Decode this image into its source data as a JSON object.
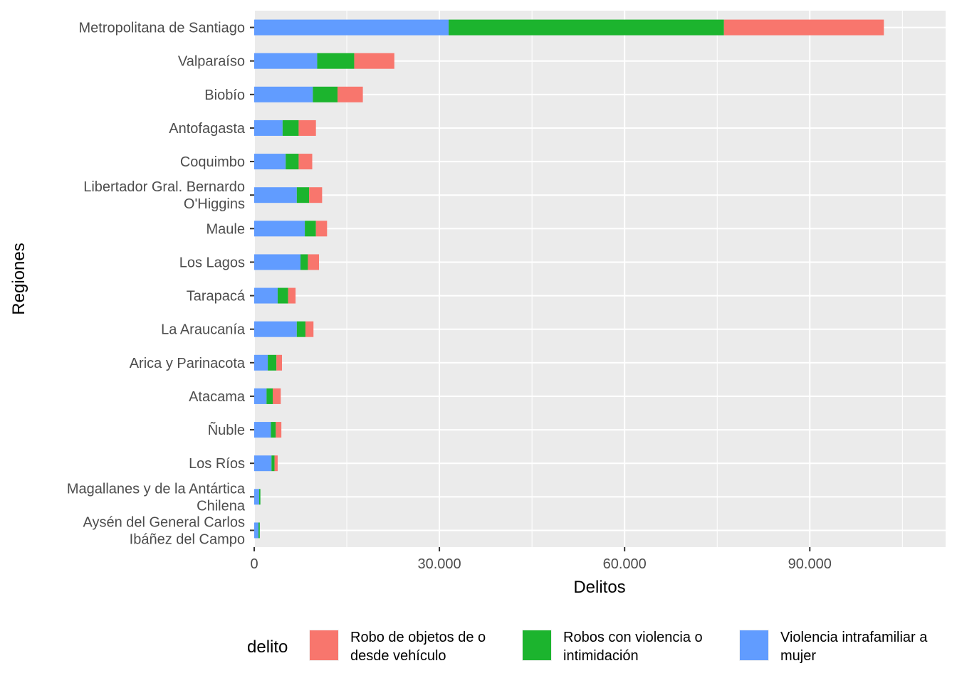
{
  "chart_data": {
    "type": "bar",
    "orientation": "horizontal",
    "stacked": true,
    "xlabel": "Delitos",
    "ylabel": "Regiones",
    "xlim": [
      0,
      112000
    ],
    "x_ticks": [
      0,
      30000,
      60000,
      90000
    ],
    "x_tick_labels": [
      "0",
      "30.000",
      "60.000",
      "90.000"
    ],
    "grid": true,
    "legend_position": "bottom",
    "legend_title": "delito",
    "categories": [
      [
        "Metropolitana de Santiago"
      ],
      [
        "Valparaíso"
      ],
      [
        "Biobío"
      ],
      [
        "Antofagasta"
      ],
      [
        "Coquimbo"
      ],
      [
        "Libertador Gral. Bernardo",
        "O'Higgins"
      ],
      [
        "Maule"
      ],
      [
        "Los Lagos"
      ],
      [
        "Tarapacá"
      ],
      [
        "La Araucanía"
      ],
      [
        "Arica y Parinacota"
      ],
      [
        "Atacama"
      ],
      [
        "Ñuble"
      ],
      [
        "Los Ríos"
      ],
      [
        "Magallanes y de la Antártica",
        "Chilena"
      ],
      [
        "Aysén del General Carlos",
        "Ibáñez del Campo"
      ]
    ],
    "series": [
      {
        "name": "Violencia intrafamiliar a mujer",
        "legend_lines": [
          "Violencia intrafamiliar a",
          "mujer"
        ],
        "color": "#619CFF",
        "values": [
          31500,
          10200,
          9500,
          4600,
          5100,
          6900,
          8200,
          7500,
          3800,
          6900,
          2200,
          2000,
          2700,
          2800,
          800,
          700
        ]
      },
      {
        "name": "Robos con violencia o intimidación",
        "legend_lines": [
          "Robos con violencia o",
          "intimidación"
        ],
        "color": "#1CB42E",
        "values": [
          44600,
          6000,
          4000,
          2600,
          2100,
          2000,
          1800,
          1200,
          1700,
          1400,
          1400,
          1000,
          800,
          500,
          200,
          200
        ]
      },
      {
        "name": "Robo de objetos de o desde vehículo",
        "legend_lines": [
          "Robo de objetos de o",
          "desde vehículo"
        ],
        "color": "#F8766D",
        "values": [
          25900,
          6500,
          4100,
          2800,
          2200,
          2100,
          1800,
          1800,
          1200,
          1300,
          900,
          1300,
          900,
          500,
          0,
          0
        ]
      }
    ]
  }
}
